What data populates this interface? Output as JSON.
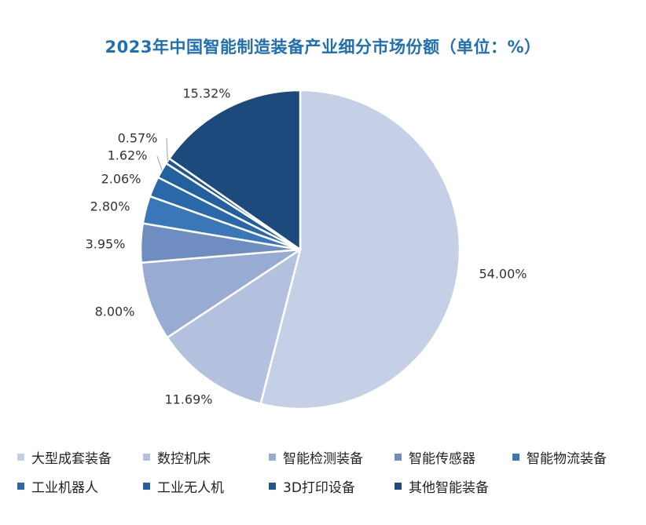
{
  "chart_data": {
    "type": "pie",
    "title": "2023年中国智能制造装备产业细分市场份额（单位：%）",
    "unit": "%",
    "legend_position": "bottom",
    "start_angle_deg": 0,
    "direction": "clockwise",
    "slices": [
      {
        "name": "大型成套装备",
        "value": 54.0,
        "label": "54.00%",
        "color": "#c5cfe5"
      },
      {
        "name": "数控机床",
        "value": 11.69,
        "label": "11.69%",
        "color": "#b3c0de"
      },
      {
        "name": "智能检测装备",
        "value": 8.0,
        "label": "8.00%",
        "color": "#98abd2"
      },
      {
        "name": "智能传感器",
        "value": 3.95,
        "label": "3.95%",
        "color": "#6f8dc0"
      },
      {
        "name": "智能物流装备",
        "value": 2.8,
        "label": "2.80%",
        "color": "#3a77b9"
      },
      {
        "name": "工业机器人",
        "value": 2.06,
        "label": "2.06%",
        "color": "#2a68aa"
      },
      {
        "name": "工业无人机",
        "value": 1.62,
        "label": "1.62%",
        "color": "#23609e"
      },
      {
        "name": "3D打印设备",
        "value": 0.57,
        "label": "0.57%",
        "color": "#1e5690"
      },
      {
        "name": "其他智能装备",
        "value": 15.32,
        "label": "15.32%",
        "color": "#1c4a7c"
      }
    ]
  }
}
